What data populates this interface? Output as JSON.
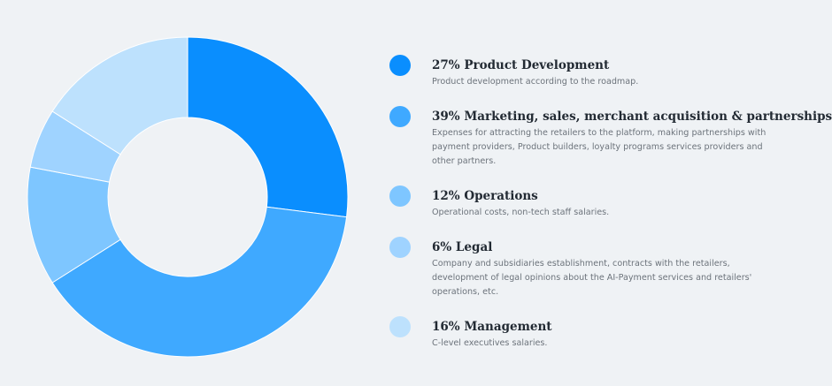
{
  "chart_data": {
    "type": "pie",
    "variant": "donut",
    "title": "",
    "start_angle_deg": 0,
    "direction": "clockwise",
    "slices": [
      {
        "percent": 27,
        "value": 27,
        "label": "27% Product Development",
        "description": "Product development according to the roadmap.",
        "color": "#0a8efe"
      },
      {
        "percent": 39,
        "value": 39,
        "label": "39% Marketing, sales, merchant acquisition & partnerships",
        "description": "Expenses for attracting the retailers to the platform, making partnerships with payment providers, Product builders, loyalty programs services providers and other partners.",
        "color": "#3fa9ff"
      },
      {
        "percent": 12,
        "value": 12,
        "label": "12% Operations",
        "description": "Operational costs, non-tech staff salaries.",
        "color": "#7ec6ff"
      },
      {
        "percent": 6,
        "value": 6,
        "label": "6% Legal",
        "description": "Company and subsidiaries establishment, contracts with the retailers, development of legal opinions about the AI-Payment services and retailers' operations, etc.",
        "color": "#9fd3ff"
      },
      {
        "percent": 16,
        "value": 16,
        "label": "16% Management",
        "description": "C-level executives salaries.",
        "color": "#bde1fd"
      }
    ],
    "legend_placement": "right",
    "grid": false
  }
}
